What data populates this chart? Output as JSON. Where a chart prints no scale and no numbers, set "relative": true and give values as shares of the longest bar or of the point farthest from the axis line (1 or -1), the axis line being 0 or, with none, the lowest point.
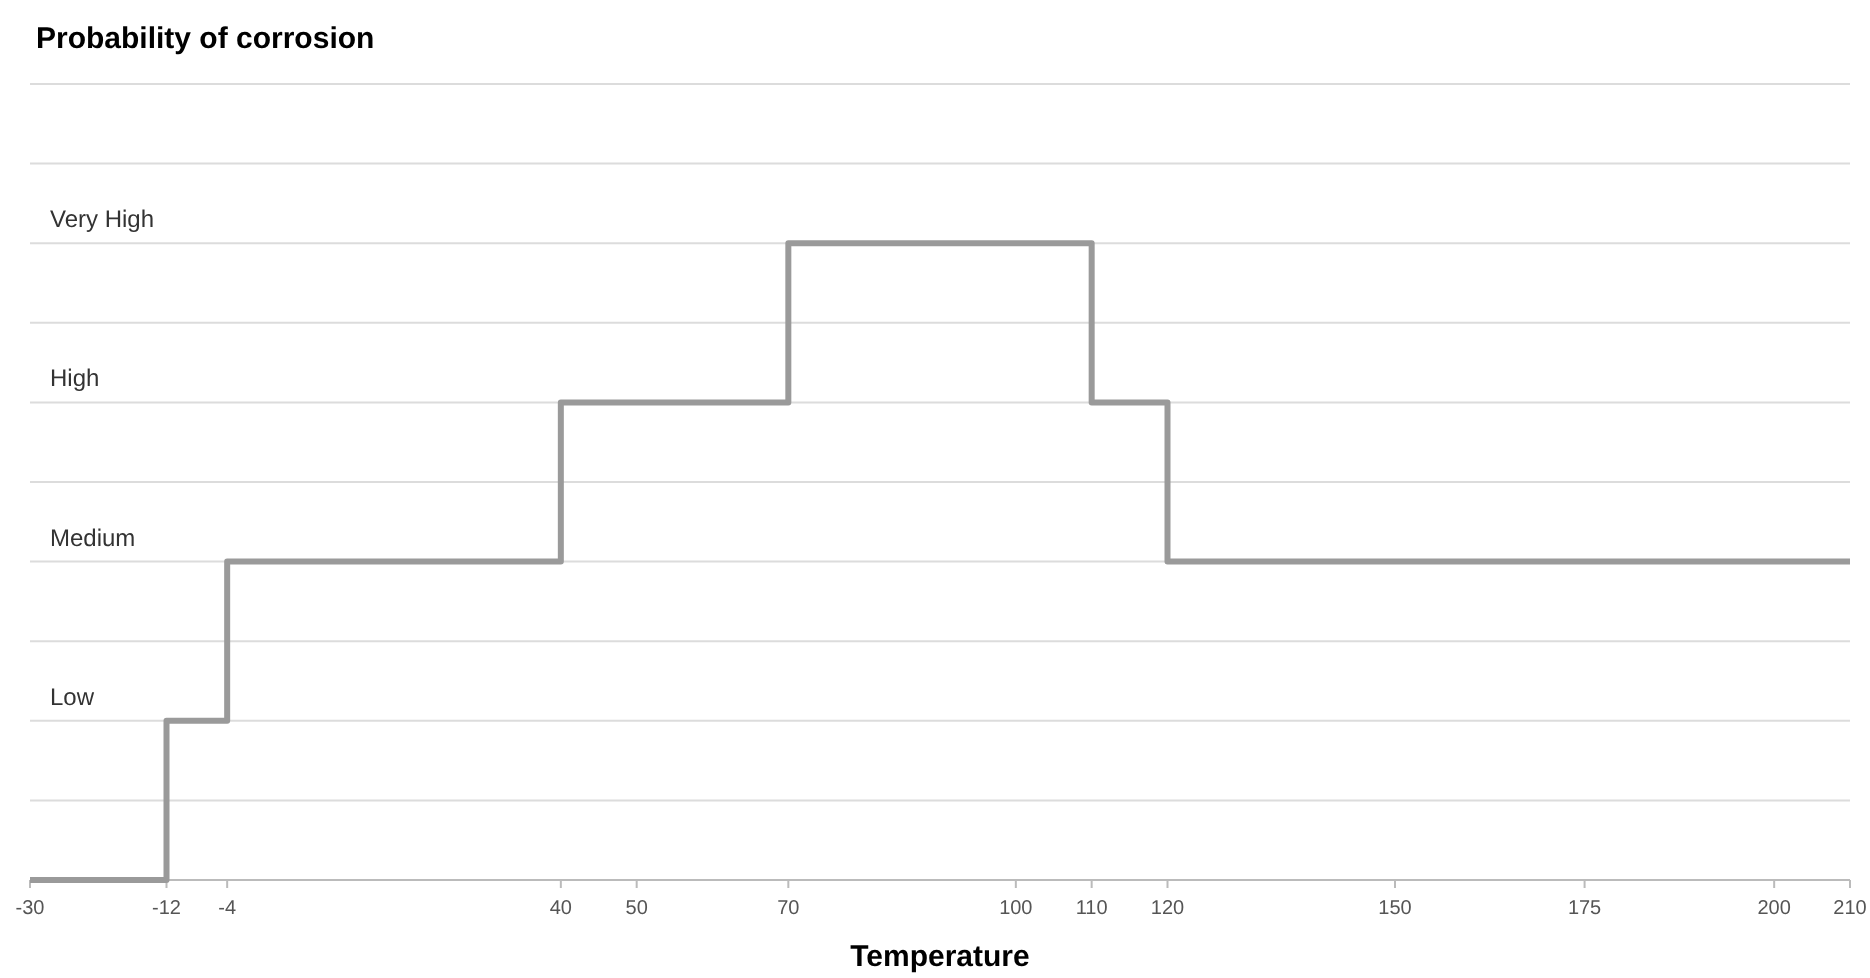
{
  "chart_data": {
    "type": "step",
    "title": "Probability of corrosion",
    "xlabel": "Temperature",
    "relative": true,
    "x": [
      -30,
      -12,
      -4,
      40,
      70,
      110,
      120,
      210
    ],
    "series": [
      {
        "color": "#9a9a9a",
        "values": [
          0,
          0.25,
          0.5,
          0.75,
          1,
          0.75,
          0.5,
          0.5
        ]
      }
    ],
    "xlim": [
      -30,
      210
    ],
    "xticks": [
      -30,
      -12,
      -4,
      40,
      50,
      70,
      100,
      110,
      120,
      150,
      175,
      200,
      210
    ],
    "annotations": [
      "Low",
      "Medium",
      "High",
      "Very High"
    ],
    "grid": "y"
  }
}
